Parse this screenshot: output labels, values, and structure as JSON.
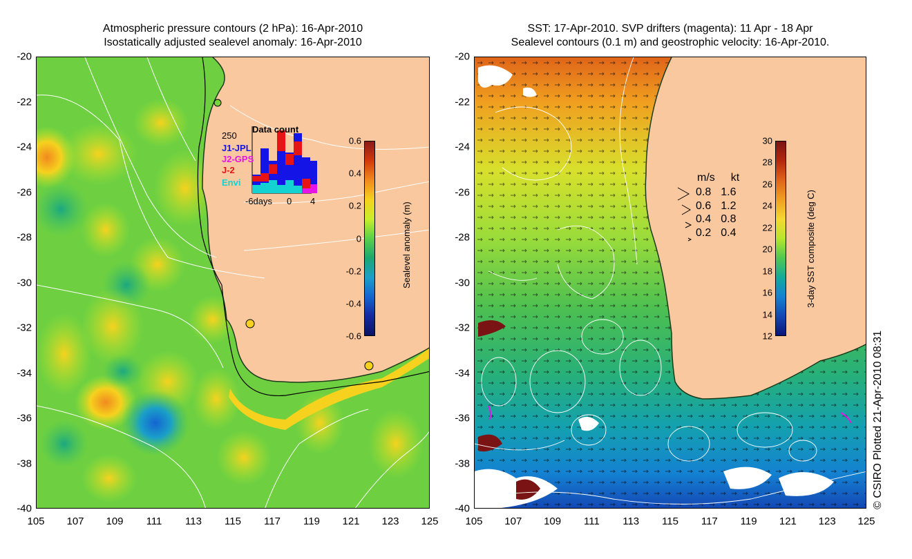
{
  "left_panel": {
    "title_line1": "Atmospheric pressure contours (2 hPa): 16-Apr-2010",
    "title_line2": "Isostatically adjusted sealevel anomaly: 16-Apr-2010",
    "colorbar": {
      "label": "Sealevel anomaly (m)",
      "ticks": [
        "0.6",
        "0.4",
        "0.2",
        "0",
        "-0.2",
        "-0.4",
        "-0.6"
      ],
      "colors": [
        "#8b1a1a",
        "#d23a0c",
        "#f08a1e",
        "#f6d21e",
        "#c8ee2a",
        "#5ad04a",
        "#1aa870",
        "#1aa0c8",
        "#1464d2",
        "#1428a0",
        "#0a1464"
      ]
    },
    "inset": {
      "title": "Data count",
      "ymax_label": "250",
      "x_labels": [
        "-6days",
        "0",
        "4"
      ],
      "missions": [
        {
          "name": "J1-JPL",
          "color": "#1414e6"
        },
        {
          "name": "J2-GPS",
          "color": "#e614e6"
        },
        {
          "name": "J-2",
          "color": "#e61414"
        },
        {
          "name": "Envi",
          "color": "#14d2d2"
        }
      ]
    }
  },
  "right_panel": {
    "title_line1": "SST: 17-Apr-2010. SVP drifters (magenta): 11 Apr - 18 Apr",
    "title_line2": "Sealevel contours (0.1 m) and geostrophic velocity: 16-Apr-2010.",
    "colorbar": {
      "label": "3-day SST composite (deg C)",
      "ticks": [
        "30",
        "28",
        "26",
        "24",
        "22",
        "20",
        "18",
        "16",
        "14",
        "12"
      ],
      "colors": [
        "#7a1414",
        "#b4280c",
        "#e0641a",
        "#f0a020",
        "#f5d830",
        "#b8e62c",
        "#50c850",
        "#14aa9a",
        "#1482d2",
        "#1446b4",
        "#0a1478"
      ]
    },
    "velocity_legend": {
      "header_ms": "m/s",
      "header_kt": "kt",
      "rows": [
        {
          "ms": "0.8",
          "kt": "1.6"
        },
        {
          "ms": "0.6",
          "kt": "1.2"
        },
        {
          "ms": "0.4",
          "kt": "0.8"
        },
        {
          "ms": "0.2",
          "kt": "0.4"
        }
      ]
    }
  },
  "axes": {
    "lat_labels": [
      "-20",
      "-22",
      "-24",
      "-26",
      "-28",
      "-30",
      "-32",
      "-34",
      "-36",
      "-38",
      "-40"
    ],
    "lon_labels": [
      "105",
      "107",
      "109",
      "111",
      "113",
      "115",
      "117",
      "119",
      "121",
      "123",
      "125"
    ]
  },
  "footer": {
    "copyright": "© CSIRO Plotted 21-Apr-2010 08:31"
  }
}
